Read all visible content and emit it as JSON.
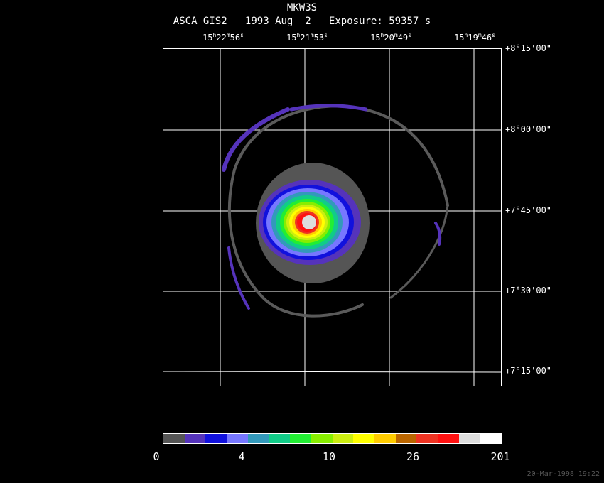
{
  "header": {
    "object": "MKW3S",
    "instrument_line": "ASCA GIS2   1993 Aug  2   Exposure: 59357 s"
  },
  "ra_ticks": [
    {
      "h": "15",
      "m": "22",
      "s": "56"
    },
    {
      "h": "15",
      "m": "21",
      "s": "53"
    },
    {
      "h": "15",
      "m": "20",
      "s": "49"
    },
    {
      "h": "15",
      "m": "19",
      "s": "46"
    }
  ],
  "dec_ticks": [
    "+8°15'00\"",
    "+8°00'00\"",
    "+7°45'00\"",
    "+7°30'00\"",
    "+7°15'00\""
  ],
  "colorbar": {
    "colors": [
      "#555555",
      "#5533bb",
      "#1111dd",
      "#7777ff",
      "#3399bb",
      "#11cc88",
      "#22ee33",
      "#88ee00",
      "#ccee11",
      "#ffff00",
      "#ffcc00",
      "#bb6600",
      "#ee3322",
      "#ff1111",
      "#dddddd",
      "#ffffff"
    ],
    "labels": [
      "0",
      "4",
      "10",
      "26",
      "201"
    ]
  },
  "footer": {
    "timestamp": "20-Mar-1998 19:22"
  }
}
